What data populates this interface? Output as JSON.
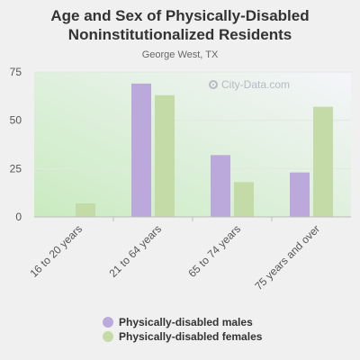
{
  "title_line1": "Age and Sex of Physically-Disabled",
  "title_line2": "Noninstitutionalized Residents",
  "subtitle": "George West, TX",
  "watermark": "City-Data.com",
  "colors": {
    "males": "#bca9db",
    "females": "#c4dba8",
    "plot_bg_start": "#c9ebc0",
    "plot_bg_end": "#f5f5fa",
    "axis": "#bbbbbb"
  },
  "chart_data": {
    "type": "bar",
    "title": "Age and Sex of Physically-Disabled Noninstitutionalized Residents",
    "subtitle": "George West, TX",
    "categories": [
      "16 to 20 years",
      "21 to 64 years",
      "65 to 74 years",
      "75 years and over"
    ],
    "series": [
      {
        "name": "Physically-disabled males",
        "values": [
          0,
          69,
          32,
          23
        ]
      },
      {
        "name": "Physically-disabled females",
        "values": [
          7,
          63,
          18,
          57
        ]
      }
    ],
    "ylim": [
      0,
      75
    ],
    "yticks": [
      0,
      25,
      50,
      75
    ],
    "grid": true,
    "legend_position": "bottom"
  }
}
